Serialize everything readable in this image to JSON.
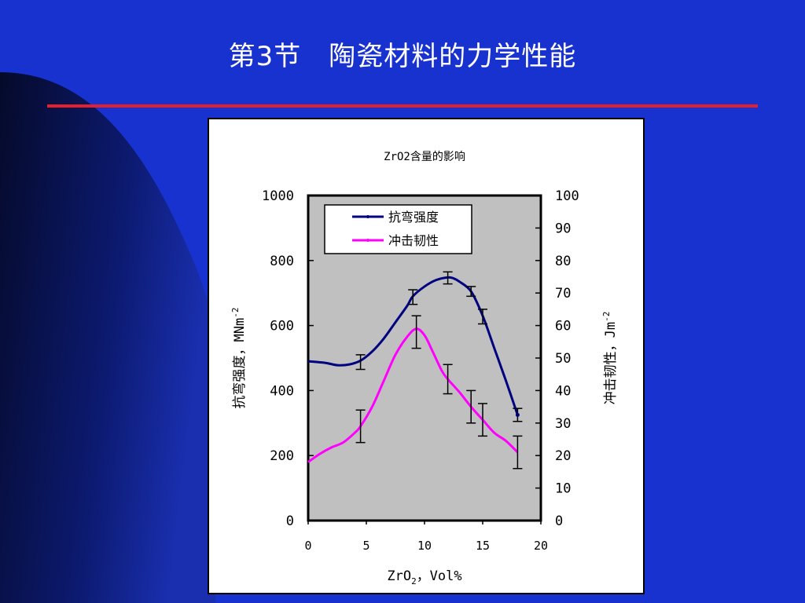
{
  "slide": {
    "title": "第3节　陶瓷材料的力学性能",
    "colors": {
      "background": "#1832d0",
      "rule": "#e3202c",
      "curve_light": "#1a2fb0",
      "curve_dark": "#050a2a"
    }
  },
  "chart_data": {
    "type": "line",
    "title": "ZrO2含量的影响",
    "xlabel_main": "ZrO",
    "xlabel_sub": "2",
    "xlabel_rest": "，Vol%",
    "ylabel_left_main": "抗弯强度，MNm",
    "ylabel_left_sup": "-2",
    "ylabel_right_main": "冲击韧性，Jm",
    "ylabel_right_sup": "-2",
    "xlim": [
      0,
      20
    ],
    "ylim_left": [
      0,
      1000
    ],
    "ylim_right": [
      0,
      100
    ],
    "x_ticks": [
      "0",
      "5",
      "10",
      "15",
      "20"
    ],
    "y_left_ticks": [
      "0",
      "200",
      "400",
      "600",
      "800",
      "1000"
    ],
    "y_right_ticks": [
      "0",
      "10",
      "20",
      "30",
      "40",
      "50",
      "60",
      "70",
      "80",
      "90",
      "100"
    ],
    "plot_background": "#c0c0c0",
    "grid": false,
    "legend_position": "top-left",
    "series": [
      {
        "name": "抗弯强度",
        "axis": "left",
        "color": "#000080",
        "points": [
          [
            0,
            490
          ],
          [
            1.5,
            485
          ],
          [
            2.5,
            478
          ],
          [
            3.5,
            480
          ],
          [
            4.5,
            492
          ],
          [
            5.5,
            520
          ],
          [
            6.5,
            560
          ],
          [
            7.5,
            610
          ],
          [
            8.5,
            660
          ],
          [
            9,
            690
          ],
          [
            10,
            720
          ],
          [
            11,
            740
          ],
          [
            12,
            748
          ],
          [
            12.5,
            745
          ],
          [
            13,
            735
          ],
          [
            14,
            705
          ],
          [
            15,
            630
          ],
          [
            16,
            530
          ],
          [
            17,
            430
          ],
          [
            18,
            325
          ]
        ],
        "error_bars": [
          {
            "x": 4.5,
            "low": 465,
            "high": 510
          },
          {
            "x": 9,
            "low": 665,
            "high": 710
          },
          {
            "x": 12,
            "low": 728,
            "high": 765
          },
          {
            "x": 14,
            "low": 690,
            "high": 720
          },
          {
            "x": 15,
            "low": 605,
            "high": 650
          },
          {
            "x": 18,
            "low": 305,
            "high": 345
          }
        ]
      },
      {
        "name": "冲击韧性",
        "axis": "right",
        "color": "#ff00ff",
        "points": [
          [
            0,
            18
          ],
          [
            1,
            20.5
          ],
          [
            2,
            22.5
          ],
          [
            3,
            24
          ],
          [
            4,
            27
          ],
          [
            4.5,
            29
          ],
          [
            5.5,
            35
          ],
          [
            6.5,
            43
          ],
          [
            7.5,
            51
          ],
          [
            8.5,
            56.5
          ],
          [
            9.3,
            59
          ],
          [
            10,
            57
          ],
          [
            10.7,
            52
          ],
          [
            11.5,
            46
          ],
          [
            12,
            43.5
          ],
          [
            13,
            39.5
          ],
          [
            14,
            35
          ],
          [
            15,
            31
          ],
          [
            16,
            27
          ],
          [
            17,
            24.5
          ],
          [
            18,
            21
          ]
        ],
        "error_bars": [
          {
            "x": 4.5,
            "low": 24,
            "high": 34
          },
          {
            "x": 9.3,
            "low": 53,
            "high": 63
          },
          {
            "x": 12,
            "low": 39,
            "high": 48
          },
          {
            "x": 14,
            "low": 30,
            "high": 40
          },
          {
            "x": 15,
            "low": 26,
            "high": 36
          },
          {
            "x": 18,
            "low": 16,
            "high": 26
          }
        ]
      }
    ]
  }
}
